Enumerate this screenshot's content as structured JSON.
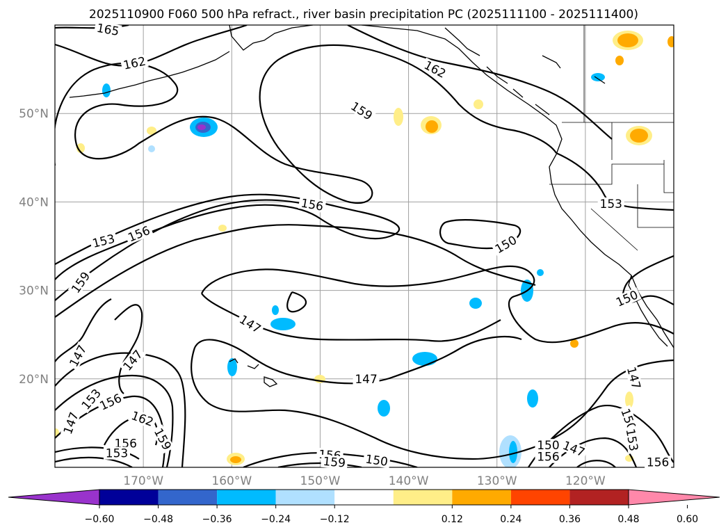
{
  "title": "2025110900 F060 500 hPa refract., river basin precipitation PC (2025111100 - 2025111400)",
  "map": {
    "lon_range": [
      -180,
      -110
    ],
    "lat_range": [
      10,
      60
    ],
    "grid": true,
    "lon_ticks": [
      {
        "value": -170,
        "label": "170°W"
      },
      {
        "value": -160,
        "label": "160°W"
      },
      {
        "value": -150,
        "label": "150°W"
      },
      {
        "value": -140,
        "label": "140°W"
      },
      {
        "value": -130,
        "label": "130°W"
      },
      {
        "value": -120,
        "label": "120°W"
      }
    ],
    "lat_ticks": [
      {
        "value": 50,
        "label": "50°N"
      },
      {
        "value": 40,
        "label": "40°N"
      },
      {
        "value": 30,
        "label": "30°N"
      },
      {
        "value": 20,
        "label": "20°N"
      }
    ]
  },
  "contour_labels": [
    {
      "text": "165",
      "lon": -174,
      "lat": 59.5,
      "rot": 10
    },
    {
      "text": "162",
      "lon": -171,
      "lat": 55.7,
      "rot": -12
    },
    {
      "text": "162",
      "lon": -137,
      "lat": 55,
      "rot": 28
    },
    {
      "text": "159",
      "lon": -145.3,
      "lat": 50.3,
      "rot": 33
    },
    {
      "text": "156",
      "lon": -150.9,
      "lat": 39.7,
      "rot": 10
    },
    {
      "text": "153",
      "lon": -117.1,
      "lat": 39.8,
      "rot": 0
    },
    {
      "text": "150",
      "lon": -129,
      "lat": 35.2,
      "rot": -30
    },
    {
      "text": "153",
      "lon": -174.5,
      "lat": 35.6,
      "rot": -14
    },
    {
      "text": "156",
      "lon": -170.5,
      "lat": 36.4,
      "rot": -22
    },
    {
      "text": "159",
      "lon": -177.1,
      "lat": 30.9,
      "rot": -55
    },
    {
      "text": "147",
      "lon": -157.9,
      "lat": 26.2,
      "rot": 32
    },
    {
      "text": "150",
      "lon": -115.3,
      "lat": 29.1,
      "rot": -24
    },
    {
      "text": "147",
      "lon": -177.4,
      "lat": 22.6,
      "rot": -62
    },
    {
      "text": "147",
      "lon": -171.2,
      "lat": 22.1,
      "rot": -50
    },
    {
      "text": "147",
      "lon": -144.8,
      "lat": 20,
      "rot": 0
    },
    {
      "text": "147",
      "lon": -114.5,
      "lat": 20.1,
      "rot": 75
    },
    {
      "text": "153",
      "lon": -175.9,
      "lat": 17.7,
      "rot": -50
    },
    {
      "text": "156",
      "lon": -173.7,
      "lat": 17.4,
      "rot": -25
    },
    {
      "text": "162",
      "lon": -170.1,
      "lat": 15.5,
      "rot": 20
    },
    {
      "text": "147",
      "lon": -178.2,
      "lat": 15,
      "rot": -70
    },
    {
      "text": "159",
      "lon": -167.8,
      "lat": 13.2,
      "rot": 62
    },
    {
      "text": "156",
      "lon": -172,
      "lat": 12.7,
      "rot": 0
    },
    {
      "text": "153",
      "lon": -173,
      "lat": 11.6,
      "rot": 0
    },
    {
      "text": "156",
      "lon": -148.9,
      "lat": 11.4,
      "rot": 5
    },
    {
      "text": "159",
      "lon": -148.4,
      "lat": 10.6,
      "rot": 5
    },
    {
      "text": "150",
      "lon": -143.6,
      "lat": 10.8,
      "rot": 8
    },
    {
      "text": "150",
      "lon": -124.2,
      "lat": 12.5,
      "rot": 0
    },
    {
      "text": "156",
      "lon": -124.2,
      "lat": 11.2,
      "rot": 0
    },
    {
      "text": "147",
      "lon": -121.3,
      "lat": 12.1,
      "rot": 22
    },
    {
      "text": "150",
      "lon": -115.1,
      "lat": 15.4,
      "rot": 70
    },
    {
      "text": "153",
      "lon": -114.7,
      "lat": 13.1,
      "rot": 80
    },
    {
      "text": "156",
      "lon": -111.8,
      "lat": 10.6,
      "rot": 0
    }
  ],
  "colorbar": {
    "colors": [
      "#9933cc",
      "#000099",
      "#3366cc",
      "#00bbff",
      "#b0e0ff",
      "#ffffff",
      "#ffee88",
      "#ffaa00",
      "#ff4400",
      "#b22222",
      "#ff88aa"
    ],
    "ticks": [
      "−0.60",
      "−0.48",
      "−0.36",
      "−0.24",
      "−0.12",
      "0.12",
      "0.24",
      "0.36",
      "0.48",
      "0.60"
    ]
  }
}
